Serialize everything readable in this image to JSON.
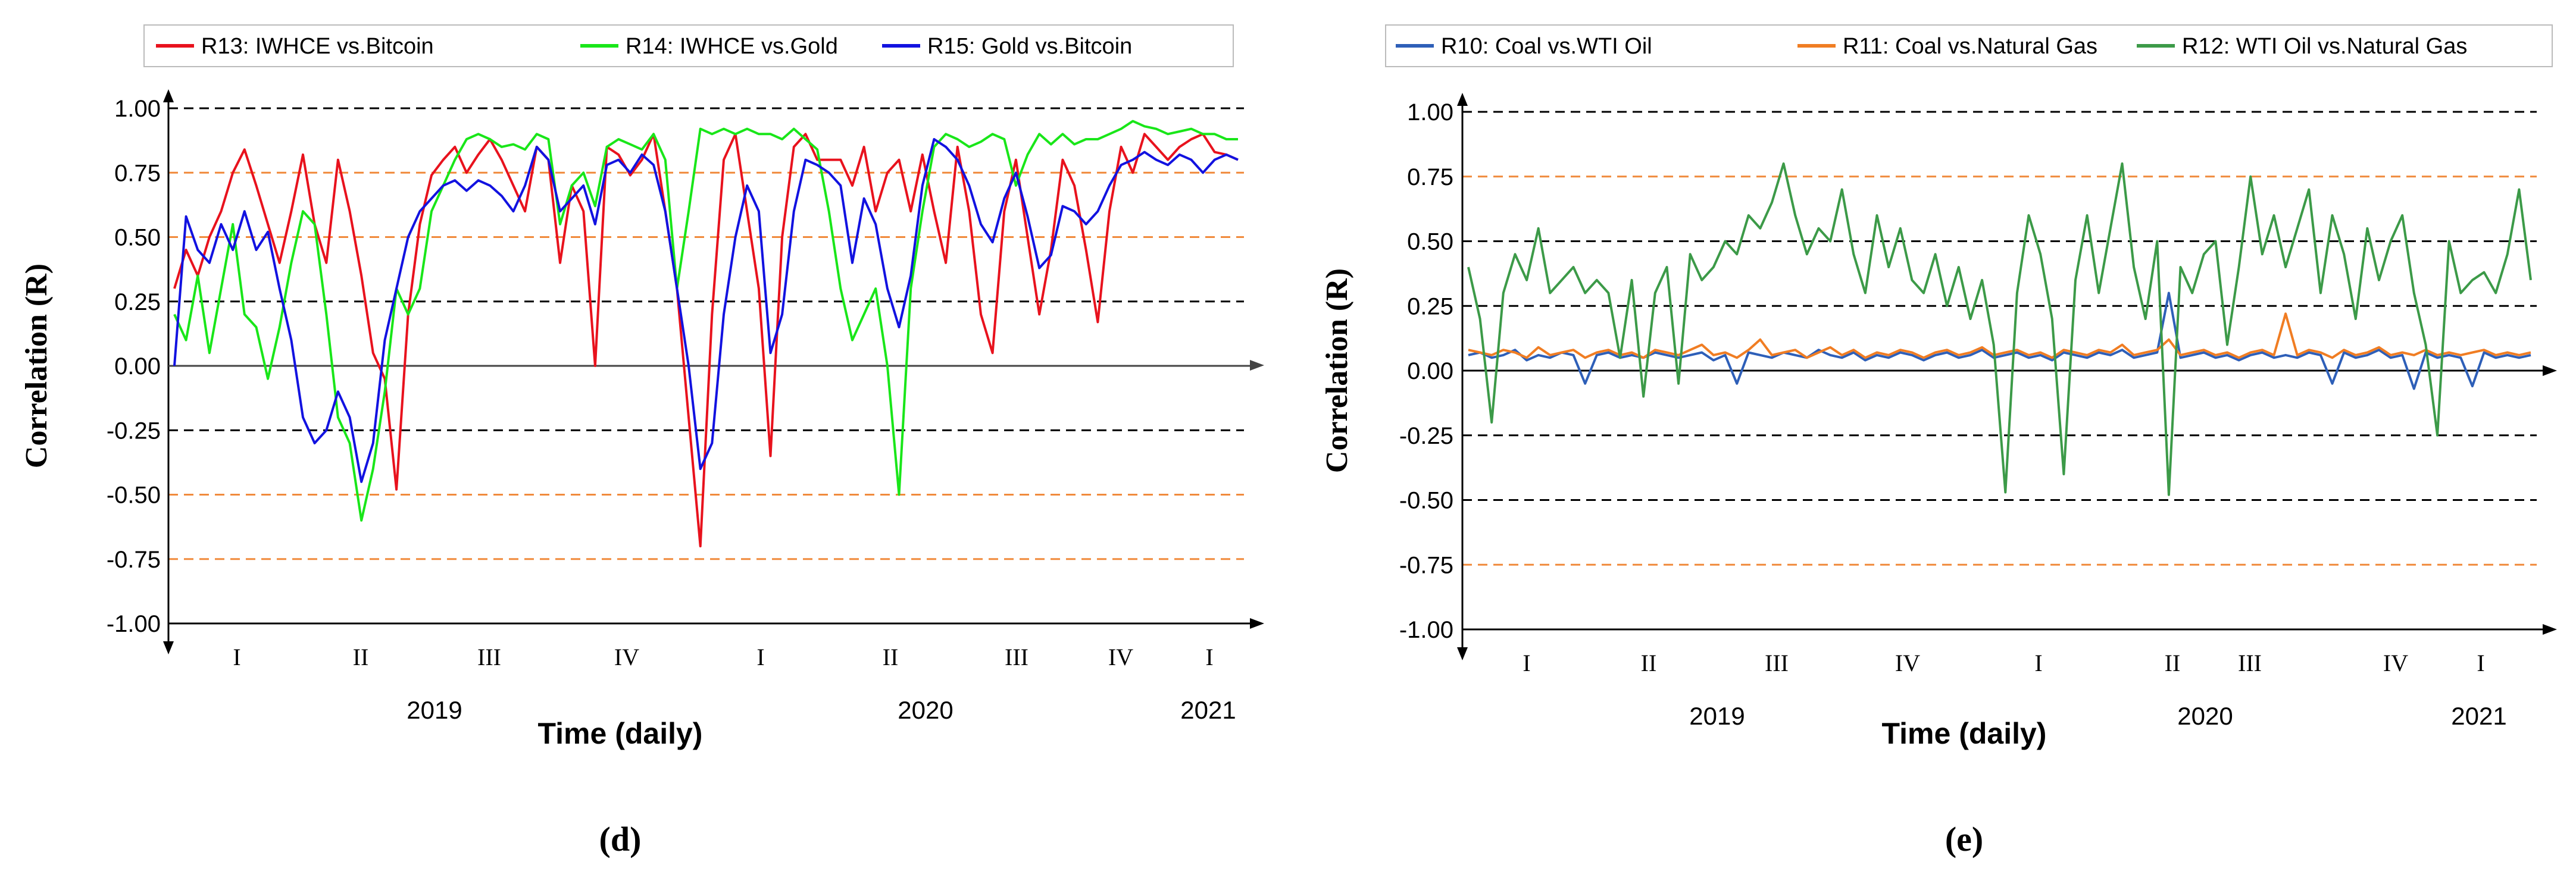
{
  "chart_data": [
    {
      "type": "line",
      "panel_label": "d",
      "panel_caption": "(d)",
      "ylabel": "Correlation (R)",
      "xlabel": "Time (daily)",
      "ylim": [
        -1.0,
        1.0
      ],
      "yticks": [
        "1.00",
        "0.75",
        "0.50",
        "0.25",
        "0.00",
        "-0.25",
        "-0.50",
        "-0.75",
        "-1.00"
      ],
      "ytick_values": [
        1.0,
        0.75,
        0.5,
        0.25,
        0.0,
        -0.25,
        -0.5,
        -0.75,
        -1.0
      ],
      "quarter_labels": [
        "I",
        "II",
        "III",
        "IV",
        "I",
        "II",
        "III",
        "IV",
        "I"
      ],
      "year_labels": [
        "2019",
        "2020",
        "2021"
      ],
      "reference_lines": [
        {
          "y": 1.0,
          "color": "#000000"
        },
        {
          "y": 0.75,
          "color": "#f08a3c"
        },
        {
          "y": 0.5,
          "color": "#f08a3c"
        },
        {
          "y": 0.25,
          "color": "#000000"
        },
        {
          "y": -0.25,
          "color": "#000000"
        },
        {
          "y": -0.5,
          "color": "#f08a3c"
        },
        {
          "y": -0.75,
          "color": "#f08a3c"
        }
      ],
      "legend_position": "top",
      "series": [
        {
          "name": "R13: IWHCE vs.Bitcoin",
          "color": "#e8121d",
          "values": [
            0.3,
            0.45,
            0.35,
            0.5,
            0.6,
            0.75,
            0.84,
            0.7,
            0.55,
            0.4,
            0.6,
            0.82,
            0.55,
            0.4,
            0.8,
            0.6,
            0.35,
            0.05,
            -0.05,
            -0.48,
            0.2,
            0.55,
            0.74,
            0.8,
            0.85,
            0.75,
            0.82,
            0.88,
            0.8,
            0.7,
            0.6,
            0.85,
            0.8,
            0.4,
            0.7,
            0.6,
            0.0,
            0.85,
            0.82,
            0.74,
            0.8,
            0.9,
            0.6,
            0.3,
            -0.2,
            -0.7,
            0.2,
            0.8,
            0.9,
            0.6,
            0.3,
            -0.35,
            0.5,
            0.85,
            0.9,
            0.8,
            0.8,
            0.8,
            0.7,
            0.85,
            0.6,
            0.75,
            0.8,
            0.6,
            0.82,
            0.6,
            0.4,
            0.85,
            0.6,
            0.2,
            0.05,
            0.6,
            0.8,
            0.5,
            0.2,
            0.45,
            0.8,
            0.7,
            0.45,
            0.17,
            0.6,
            0.85,
            0.75,
            0.9,
            0.85,
            0.8,
            0.85,
            0.88,
            0.9,
            0.83,
            0.82,
            0.8
          ]
        },
        {
          "name": "R14: IWHCE vs.Gold",
          "color": "#19e619",
          "values": [
            0.2,
            0.1,
            0.35,
            0.05,
            0.3,
            0.55,
            0.2,
            0.15,
            -0.05,
            0.15,
            0.4,
            0.6,
            0.55,
            0.2,
            -0.2,
            -0.3,
            -0.6,
            -0.4,
            -0.1,
            0.3,
            0.2,
            0.3,
            0.6,
            0.7,
            0.8,
            0.88,
            0.9,
            0.88,
            0.85,
            0.86,
            0.84,
            0.9,
            0.88,
            0.55,
            0.7,
            0.75,
            0.62,
            0.85,
            0.88,
            0.86,
            0.84,
            0.9,
            0.8,
            0.3,
            0.6,
            0.92,
            0.9,
            0.92,
            0.9,
            0.92,
            0.9,
            0.9,
            0.88,
            0.92,
            0.88,
            0.84,
            0.6,
            0.3,
            0.1,
            0.2,
            0.3,
            0.0,
            -0.5,
            0.3,
            0.6,
            0.85,
            0.9,
            0.88,
            0.85,
            0.87,
            0.9,
            0.88,
            0.7,
            0.82,
            0.9,
            0.86,
            0.9,
            0.86,
            0.88,
            0.88,
            0.9,
            0.92,
            0.95,
            0.93,
            0.92,
            0.9,
            0.91,
            0.92,
            0.9,
            0.9,
            0.88,
            0.88
          ]
        },
        {
          "name": "R15: Gold vs.Bitcoin",
          "color": "#1212e0",
          "values": [
            0.0,
            0.58,
            0.45,
            0.4,
            0.55,
            0.45,
            0.6,
            0.45,
            0.52,
            0.3,
            0.1,
            -0.2,
            -0.3,
            -0.25,
            -0.1,
            -0.2,
            -0.45,
            -0.3,
            0.1,
            0.3,
            0.5,
            0.6,
            0.65,
            0.7,
            0.72,
            0.68,
            0.72,
            0.7,
            0.66,
            0.6,
            0.7,
            0.85,
            0.8,
            0.6,
            0.65,
            0.7,
            0.55,
            0.78,
            0.8,
            0.75,
            0.82,
            0.78,
            0.6,
            0.3,
            0.0,
            -0.4,
            -0.3,
            0.2,
            0.5,
            0.7,
            0.6,
            0.05,
            0.2,
            0.6,
            0.8,
            0.78,
            0.75,
            0.7,
            0.4,
            0.65,
            0.55,
            0.3,
            0.15,
            0.35,
            0.7,
            0.88,
            0.85,
            0.8,
            0.7,
            0.55,
            0.48,
            0.65,
            0.75,
            0.58,
            0.38,
            0.43,
            0.62,
            0.6,
            0.55,
            0.6,
            0.7,
            0.78,
            0.8,
            0.83,
            0.8,
            0.78,
            0.82,
            0.8,
            0.75,
            0.8,
            0.82,
            0.8
          ]
        }
      ]
    },
    {
      "type": "line",
      "panel_label": "e",
      "panel_caption": "(e)",
      "ylabel": "Correlation (R)",
      "xlabel": "Time (daily)",
      "ylim": [
        -1.0,
        1.0
      ],
      "yticks": [
        "1.00",
        "0.75",
        "0.50",
        "0.25",
        "0.00",
        "-0.25",
        "-0.50",
        "-0.75",
        "-1.00"
      ],
      "ytick_values": [
        1.0,
        0.75,
        0.5,
        0.25,
        0.0,
        -0.25,
        -0.5,
        -0.75,
        -1.0
      ],
      "quarter_labels": [
        "I",
        "II",
        "III",
        "IV",
        "I",
        "II",
        "III",
        "IV",
        "I"
      ],
      "year_labels": [
        "2019",
        "2020",
        "2021"
      ],
      "reference_lines": [
        {
          "y": 1.0,
          "color": "#000000"
        },
        {
          "y": 0.75,
          "color": "#f08a3c"
        },
        {
          "y": 0.5,
          "color": "#000000"
        },
        {
          "y": 0.25,
          "color": "#000000"
        },
        {
          "y": -0.25,
          "color": "#000000"
        },
        {
          "y": -0.5,
          "color": "#000000"
        },
        {
          "y": -0.75,
          "color": "#f08a3c"
        }
      ],
      "legend_position": "top",
      "series": [
        {
          "name": "R10: Coal vs.WTI Oil",
          "color": "#2e5fb8",
          "values": [
            0.06,
            0.07,
            0.05,
            0.06,
            0.08,
            0.04,
            0.06,
            0.05,
            0.07,
            0.06,
            -0.05,
            0.06,
            0.07,
            0.05,
            0.06,
            0.05,
            0.07,
            0.06,
            0.05,
            0.06,
            0.07,
            0.04,
            0.06,
            -0.05,
            0.07,
            0.06,
            0.05,
            0.07,
            0.06,
            0.05,
            0.08,
            0.06,
            0.05,
            0.07,
            0.04,
            0.06,
            0.05,
            0.07,
            0.06,
            0.04,
            0.06,
            0.07,
            0.05,
            0.06,
            0.08,
            0.05,
            0.06,
            0.07,
            0.05,
            0.06,
            0.04,
            0.07,
            0.06,
            0.05,
            0.07,
            0.06,
            0.08,
            0.05,
            0.06,
            0.07,
            0.3,
            0.05,
            0.06,
            0.07,
            0.05,
            0.06,
            0.04,
            0.06,
            0.07,
            0.05,
            0.06,
            0.05,
            0.07,
            0.06,
            -0.05,
            0.07,
            0.05,
            0.06,
            0.08,
            0.05,
            0.06,
            -0.07,
            0.07,
            0.05,
            0.06,
            0.05,
            -0.06,
            0.07,
            0.05,
            0.06,
            0.05,
            0.06
          ]
        },
        {
          "name": "R11: Coal vs.Natural Gas",
          "color": "#f07d23",
          "values": [
            0.08,
            0.07,
            0.06,
            0.08,
            0.07,
            0.05,
            0.09,
            0.06,
            0.07,
            0.08,
            0.05,
            0.07,
            0.08,
            0.06,
            0.07,
            0.05,
            0.08,
            0.07,
            0.06,
            0.08,
            0.1,
            0.06,
            0.07,
            0.05,
            0.08,
            0.12,
            0.06,
            0.07,
            0.08,
            0.05,
            0.07,
            0.09,
            0.06,
            0.08,
            0.05,
            0.07,
            0.06,
            0.08,
            0.07,
            0.05,
            0.07,
            0.08,
            0.06,
            0.07,
            0.09,
            0.06,
            0.07,
            0.08,
            0.06,
            0.07,
            0.05,
            0.08,
            0.07,
            0.06,
            0.08,
            0.07,
            0.1,
            0.06,
            0.07,
            0.08,
            0.12,
            0.06,
            0.07,
            0.08,
            0.06,
            0.07,
            0.05,
            0.07,
            0.08,
            0.06,
            0.22,
            0.06,
            0.08,
            0.07,
            0.05,
            0.08,
            0.06,
            0.07,
            0.09,
            0.06,
            0.07,
            0.06,
            0.08,
            0.06,
            0.07,
            0.06,
            0.07,
            0.08,
            0.06,
            0.07,
            0.06,
            0.07
          ]
        },
        {
          "name": "R12: WTI Oil vs.Natural Gas",
          "color": "#3c9a48",
          "values": [
            0.4,
            0.2,
            -0.2,
            0.3,
            0.45,
            0.35,
            0.55,
            0.3,
            0.35,
            0.4,
            0.3,
            0.35,
            0.3,
            0.05,
            0.35,
            -0.1,
            0.3,
            0.4,
            -0.05,
            0.45,
            0.35,
            0.4,
            0.5,
            0.45,
            0.6,
            0.55,
            0.65,
            0.8,
            0.6,
            0.45,
            0.55,
            0.5,
            0.7,
            0.45,
            0.3,
            0.6,
            0.4,
            0.55,
            0.35,
            0.3,
            0.45,
            0.25,
            0.4,
            0.2,
            0.35,
            0.1,
            -0.47,
            0.3,
            0.6,
            0.45,
            0.2,
            -0.4,
            0.35,
            0.6,
            0.3,
            0.55,
            0.8,
            0.4,
            0.2,
            0.5,
            -0.48,
            0.4,
            0.3,
            0.45,
            0.5,
            0.1,
            0.4,
            0.75,
            0.45,
            0.6,
            0.4,
            0.55,
            0.7,
            0.3,
            0.6,
            0.45,
            0.2,
            0.55,
            0.35,
            0.5,
            0.6,
            0.3,
            0.1,
            -0.25,
            0.5,
            0.3,
            0.35,
            0.38,
            0.3,
            0.45,
            0.7,
            0.35
          ]
        }
      ]
    }
  ]
}
